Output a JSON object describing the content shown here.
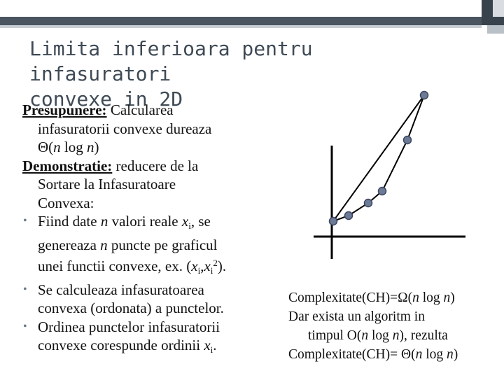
{
  "slide": {
    "title_line1": "Limita inferioara pentru infasuratori",
    "title_line2": "convexe in 2D"
  },
  "body": {
    "presupunere_label": "Presupunere:",
    "presupunere_text": " Calcularea",
    "presupunere_line2": "infasuratorii convexe dureaza",
    "presupunere_line3_pre": "Θ(",
    "presupunere_line3_n": "n",
    "presupunere_line3_log": " log ",
    "presupunere_line3_n2": "n",
    "presupunere_line3_post": ")",
    "demonstratie_label": "Demonstratie:",
    "demonstratie_text": " reducere de la",
    "demonstratie_line2": "Sortare la Infasuratoare",
    "demonstratie_line3": "Convexa:",
    "bullet_glyph": "•",
    "b1_l1_pre": "Fiind date ",
    "b1_l1_n": "n",
    "b1_l1_mid": " valori reale ",
    "b1_l1_x": "x",
    "b1_l1_sub": "i",
    "b1_l1_post": ", se",
    "b1_l2_pre": "genereaza ",
    "b1_l2_n": "n",
    "b1_l2_post": " puncte pe graficul",
    "b1_l3_pre": "unei functii convexe, ex. (",
    "b1_l3_x1": "x",
    "b1_l3_sub1": "i",
    "b1_l3_comma": ",",
    "b1_l3_x2": "x",
    "b1_l3_sub2": "i",
    "b1_l3_sup": "2",
    "b1_l3_post": ").",
    "b2_l1": "Se calculeaza infasuratoarea",
    "b2_l2": "convexa (ordonata) a punctelor.",
    "b3_l1": "Ordinea punctelor infasuratorii",
    "b3_l2_pre": "convexe corespunde ordinii ",
    "b3_l2_x": "x",
    "b3_l2_sub": "i",
    "b3_l2_post": "."
  },
  "right": {
    "r1_pre": "Complexitate(CH)=Ω(",
    "r1_n": "n",
    "r1_log": " log ",
    "r1_n2": "n",
    "r1_post": ")",
    "r2": "Dar exista un algoritm in",
    "r3_pre": "timpul O(",
    "r3_n": "n",
    "r3_log": " log ",
    "r3_n2": "n",
    "r3_post": "), rezulta",
    "r4_pre": "Complexitate(CH)= Θ(",
    "r4_n": "n",
    "r4_log": " log ",
    "r4_n2": "n",
    "r4_post": ")"
  },
  "colors": {
    "title": "#3e4a55",
    "point_fill": "#6d7a96",
    "point_stroke": "#3c4660",
    "axis": "#000000"
  }
}
